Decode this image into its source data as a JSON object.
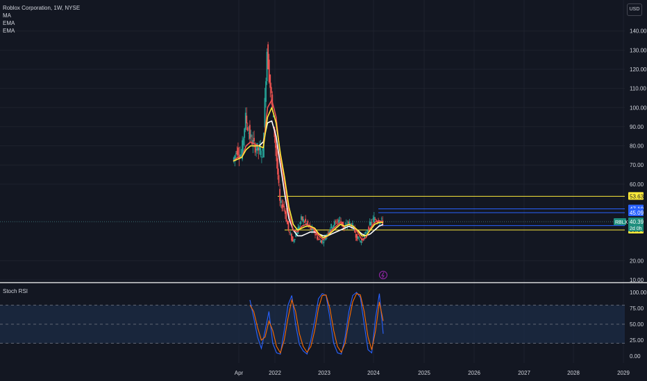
{
  "legend": {
    "title": "Roblox Corporation, 1W, NYSE",
    "indicators": [
      "MA",
      "EMA",
      "EMA"
    ]
  },
  "currency": "USD",
  "oscillator": {
    "title": "Stoch RSI"
  },
  "colors": {
    "background": "#131722",
    "grid": "#1e222d",
    "up": "#26a69a",
    "down": "#ef5350",
    "ma": "#ffffff",
    "ema_fast": "#ef5350",
    "ema_slow": "#ffeb3b",
    "level_yellow": "#ffeb3b",
    "level_blue": "#2962ff",
    "stoch_k": "#2962ff",
    "stoch_d": "#ff6d00",
    "stoch_band": "#1c2a44"
  },
  "chart_data": [
    {
      "type": "candlestick",
      "title": "Roblox Corporation, 1W, NYSE",
      "ylim": [
        10,
        145
      ],
      "x_ticks": [
        "Apr",
        "2022",
        "2023",
        "2024",
        "2025",
        "2026",
        "2027",
        "2028",
        "2029"
      ],
      "y_ticks": [
        "140.00",
        "130.00",
        "120.00",
        "110.00",
        "100.00",
        "90.00",
        "80.00",
        "70.00",
        "60.00",
        "20.00",
        "10.00"
      ],
      "series": [
        {
          "name": "RBLX",
          "x": [
            "2021-03",
            "2021-04",
            "2021-05",
            "2021-06",
            "2021-07",
            "2021-08",
            "2021-09",
            "2021-10",
            "2021-11",
            "2021-12",
            "2022-01",
            "2022-02",
            "2022-03",
            "2022-04",
            "2022-05",
            "2022-06",
            "2022-07",
            "2022-08",
            "2022-09",
            "2022-10",
            "2022-11",
            "2022-12",
            "2023-01",
            "2023-02",
            "2023-03",
            "2023-04",
            "2023-05",
            "2023-06",
            "2023-07",
            "2023-08",
            "2023-09",
            "2023-10",
            "2023-11",
            "2023-12",
            "2024-01",
            "2024-02"
          ],
          "values": [
            72,
            78,
            75,
            95,
            85,
            80,
            78,
            76,
            130,
            105,
            80,
            50,
            48,
            36,
            30,
            35,
            42,
            40,
            37,
            35,
            31,
            30,
            34,
            38,
            40,
            42,
            37,
            40,
            38,
            32,
            30,
            34,
            39,
            42,
            41,
            40.39
          ]
        }
      ],
      "lines": [
        {
          "name": "MA",
          "values": [
            null,
            null,
            null,
            null,
            null,
            null,
            80,
            82,
            92,
            93,
            85,
            70,
            55,
            42,
            36,
            33,
            33,
            34,
            35,
            35,
            34,
            33,
            33,
            34,
            35,
            36,
            37,
            38,
            37,
            36,
            34,
            33,
            34,
            36,
            38,
            39
          ]
        },
        {
          "name": "EMA",
          "values": [
            72,
            74,
            74,
            80,
            82,
            81,
            80,
            79,
            100,
            104,
            95,
            74,
            60,
            45,
            36,
            35,
            38,
            39,
            38,
            36,
            33,
            31,
            33,
            36,
            38,
            40,
            38,
            39,
            38,
            35,
            31,
            32,
            37,
            40,
            41,
            40
          ]
        },
        {
          "name": "EMA",
          "values": [
            72,
            73,
            74,
            78,
            80,
            80,
            80,
            79,
            95,
            100,
            92,
            76,
            63,
            48,
            39,
            36,
            37,
            38,
            38,
            37,
            34,
            32,
            33,
            35,
            37,
            39,
            38,
            39,
            38,
            36,
            33,
            33,
            36,
            39,
            40,
            40
          ]
        }
      ],
      "levels": [
        {
          "price": 53.63,
          "label": "53.63",
          "color": "yellow"
        },
        {
          "price": 47.1,
          "label": "47.10",
          "color": "blue"
        },
        {
          "price": 45.09,
          "label": "45.09",
          "color": "blue"
        },
        {
          "price": 38.37,
          "label": "38.37",
          "color": "blue"
        },
        {
          "price": 36.04,
          "label": "36.04",
          "color": "yellow"
        }
      ],
      "last_price": {
        "symbol": "RBLX",
        "price": 40.39,
        "label": "40.39",
        "countdown": "2d 0h"
      }
    },
    {
      "type": "line",
      "title": "Stoch RSI",
      "ylim": [
        0,
        100
      ],
      "y_ticks": [
        "100.00",
        "75.00",
        "50.00",
        "25.00",
        "0.00"
      ],
      "band": [
        20,
        80
      ],
      "series": [
        {
          "name": "K",
          "values": [
            88,
            60,
            30,
            12,
            40,
            70,
            20,
            5,
            3,
            40,
            80,
            95,
            50,
            18,
            8,
            3,
            25,
            55,
            90,
            98,
            95,
            60,
            20,
            5,
            3,
            30,
            70,
            95,
            100,
            92,
            50,
            10,
            5,
            60,
            98,
            35
          ]
        },
        {
          "name": "D",
          "values": [
            80,
            70,
            45,
            25,
            30,
            55,
            40,
            15,
            5,
            25,
            60,
            88,
            70,
            35,
            15,
            6,
            15,
            40,
            75,
            95,
            96,
            75,
            40,
            15,
            6,
            20,
            55,
            85,
            98,
            96,
            70,
            30,
            10,
            40,
            85,
            55
          ]
        }
      ]
    }
  ]
}
